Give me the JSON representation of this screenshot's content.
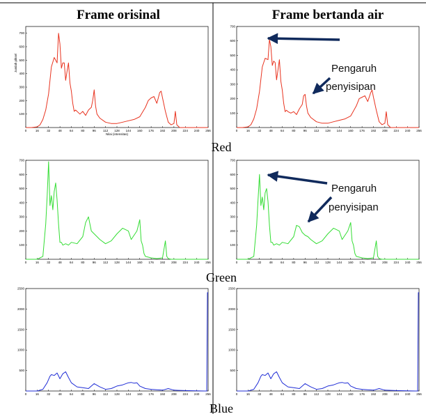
{
  "headers": {
    "left": "Frame orisinal",
    "right": "Frame bertanda air"
  },
  "rows": {
    "red": "Red",
    "green": "Green",
    "blue": "Blue"
  },
  "annotation": {
    "line1": "Pengaruh",
    "line2": "penyisipan"
  },
  "colors": {
    "red": "#e8321e",
    "green": "#33dd33",
    "blue": "#1f2dd6",
    "arrow": "#102a5c"
  },
  "chart_data": [
    {
      "id": "red-original",
      "type": "line",
      "channel": "Red",
      "xlabel": "Nilai (intensitas)",
      "ylabel": "Jumlah piksel",
      "xlim": [
        0,
        256
      ],
      "ylim": [
        0,
        750
      ],
      "xticks": [
        0,
        16,
        32,
        48,
        64,
        80,
        96,
        112,
        128,
        144,
        160,
        176,
        192,
        208,
        224,
        240,
        256
      ],
      "yticks": [
        100,
        200,
        300,
        400,
        500,
        600,
        700
      ],
      "x": [
        0,
        8,
        16,
        20,
        24,
        28,
        32,
        36,
        40,
        44,
        46,
        48,
        50,
        52,
        54,
        56,
        58,
        60,
        62,
        64,
        66,
        68,
        70,
        72,
        76,
        80,
        84,
        88,
        92,
        94,
        96,
        98,
        100,
        104,
        112,
        120,
        128,
        136,
        144,
        152,
        160,
        168,
        172,
        176,
        180,
        184,
        186,
        188,
        190,
        192,
        196,
        200,
        204,
        208,
        210,
        212,
        216,
        224,
        232,
        240,
        248,
        256
      ],
      "y": [
        0,
        0,
        5,
        20,
        60,
        130,
        250,
        450,
        520,
        480,
        700,
        620,
        440,
        480,
        480,
        350,
        420,
        480,
        330,
        270,
        180,
        120,
        130,
        120,
        100,
        120,
        90,
        130,
        150,
        200,
        280,
        160,
        100,
        70,
        40,
        30,
        30,
        40,
        50,
        60,
        80,
        150,
        200,
        220,
        230,
        180,
        220,
        260,
        270,
        220,
        120,
        40,
        20,
        30,
        120,
        20,
        0,
        0,
        0,
        0,
        0,
        0
      ]
    },
    {
      "id": "red-watermarked",
      "type": "line",
      "channel": "Red",
      "xlim": [
        0,
        256
      ],
      "ylim": [
        0,
        700
      ],
      "xticks": [
        0,
        16,
        32,
        48,
        64,
        80,
        96,
        112,
        128,
        144,
        160,
        176,
        192,
        208,
        224,
        240,
        256
      ],
      "yticks": [
        100,
        200,
        300,
        400,
        500,
        600,
        700
      ],
      "x": [
        0,
        8,
        16,
        20,
        24,
        28,
        32,
        36,
        40,
        44,
        46,
        48,
        50,
        52,
        54,
        56,
        58,
        60,
        62,
        64,
        66,
        68,
        70,
        72,
        76,
        80,
        84,
        88,
        92,
        94,
        96,
        98,
        100,
        104,
        112,
        120,
        128,
        136,
        144,
        152,
        160,
        168,
        172,
        176,
        180,
        184,
        186,
        188,
        190,
        192,
        196,
        200,
        204,
        208,
        210,
        212,
        216,
        224,
        232,
        240,
        248,
        256
      ],
      "y": [
        0,
        0,
        5,
        20,
        60,
        130,
        250,
        420,
        480,
        470,
        610,
        560,
        430,
        460,
        450,
        330,
        400,
        470,
        320,
        260,
        170,
        110,
        120,
        110,
        100,
        110,
        90,
        130,
        160,
        220,
        230,
        150,
        100,
        70,
        40,
        30,
        30,
        40,
        50,
        60,
        80,
        150,
        200,
        210,
        220,
        180,
        210,
        240,
        260,
        210,
        120,
        40,
        20,
        30,
        110,
        20,
        0,
        0,
        0,
        0,
        0,
        0
      ]
    },
    {
      "id": "green-original",
      "type": "line",
      "channel": "Green",
      "xlim": [
        0,
        256
      ],
      "ylim": [
        0,
        700
      ],
      "xticks": [
        0,
        16,
        32,
        48,
        64,
        80,
        96,
        112,
        128,
        144,
        160,
        176,
        192,
        208,
        224,
        240,
        256
      ],
      "yticks": [
        100,
        200,
        300,
        400,
        500,
        600,
        700
      ],
      "x": [
        0,
        16,
        24,
        28,
        30,
        32,
        34,
        36,
        38,
        40,
        42,
        44,
        46,
        48,
        50,
        52,
        56,
        60,
        64,
        72,
        80,
        84,
        88,
        92,
        96,
        100,
        104,
        112,
        120,
        128,
        136,
        144,
        148,
        152,
        156,
        160,
        162,
        164,
        166,
        168,
        176,
        184,
        192,
        196,
        198,
        200,
        204,
        208,
        224,
        240,
        256
      ],
      "y": [
        0,
        0,
        20,
        250,
        440,
        690,
        380,
        450,
        350,
        480,
        540,
        420,
        250,
        120,
        120,
        100,
        110,
        100,
        120,
        110,
        160,
        260,
        300,
        200,
        180,
        160,
        140,
        110,
        130,
        180,
        220,
        200,
        140,
        170,
        200,
        280,
        130,
        100,
        40,
        20,
        10,
        5,
        10,
        130,
        20,
        5,
        0,
        0,
        0,
        0,
        0
      ]
    },
    {
      "id": "green-watermarked",
      "type": "line",
      "channel": "Green",
      "xlim": [
        0,
        256
      ],
      "ylim": [
        0,
        700
      ],
      "xticks": [
        0,
        16,
        32,
        48,
        64,
        80,
        96,
        112,
        128,
        144,
        160,
        176,
        192,
        208,
        224,
        240,
        256
      ],
      "yticks": [
        100,
        200,
        300,
        400,
        500,
        600,
        700
      ],
      "x": [
        0,
        16,
        24,
        28,
        30,
        32,
        34,
        36,
        38,
        40,
        42,
        44,
        46,
        48,
        50,
        52,
        56,
        60,
        64,
        72,
        80,
        84,
        88,
        92,
        96,
        100,
        104,
        112,
        120,
        128,
        136,
        144,
        148,
        152,
        156,
        160,
        162,
        164,
        166,
        168,
        176,
        184,
        192,
        196,
        198,
        200,
        204,
        208,
        224,
        240,
        256
      ],
      "y": [
        0,
        0,
        20,
        240,
        420,
        600,
        380,
        440,
        350,
        470,
        500,
        410,
        240,
        120,
        120,
        100,
        110,
        100,
        120,
        110,
        160,
        240,
        230,
        190,
        170,
        160,
        140,
        110,
        130,
        180,
        220,
        200,
        140,
        170,
        200,
        260,
        130,
        100,
        40,
        20,
        10,
        5,
        10,
        130,
        20,
        5,
        0,
        0,
        0,
        0,
        0
      ]
    },
    {
      "id": "blue-original",
      "type": "line",
      "channel": "Blue",
      "xlim": [
        0,
        256
      ],
      "ylim": [
        0,
        2500
      ],
      "xticks": [
        0,
        16,
        32,
        48,
        64,
        80,
        96,
        112,
        128,
        144,
        160,
        176,
        192,
        208,
        224,
        240,
        256
      ],
      "yticks": [
        500,
        1000,
        1500,
        2000,
        2500
      ],
      "x": [
        0,
        16,
        24,
        30,
        34,
        36,
        40,
        44,
        48,
        52,
        56,
        60,
        64,
        72,
        80,
        88,
        96,
        104,
        112,
        120,
        128,
        136,
        144,
        148,
        152,
        156,
        160,
        168,
        176,
        184,
        192,
        200,
        208,
        224,
        240,
        252,
        254,
        255,
        256
      ],
      "y": [
        0,
        0,
        40,
        200,
        360,
        400,
        380,
        440,
        300,
        420,
        470,
        330,
        200,
        100,
        80,
        60,
        180,
        100,
        40,
        60,
        120,
        150,
        200,
        210,
        190,
        200,
        120,
        60,
        40,
        30,
        20,
        60,
        20,
        10,
        5,
        0,
        0,
        2400,
        2400
      ]
    },
    {
      "id": "blue-watermarked",
      "type": "line",
      "channel": "Blue",
      "xlim": [
        0,
        256
      ],
      "ylim": [
        0,
        2500
      ],
      "xticks": [
        0,
        16,
        32,
        48,
        64,
        80,
        96,
        112,
        128,
        144,
        160,
        176,
        192,
        208,
        224,
        240,
        256
      ],
      "yticks": [
        500,
        1000,
        1500,
        2000,
        2500
      ],
      "x": [
        0,
        16,
        24,
        30,
        34,
        36,
        40,
        44,
        48,
        52,
        56,
        60,
        64,
        72,
        80,
        88,
        96,
        104,
        112,
        120,
        128,
        136,
        144,
        148,
        152,
        156,
        160,
        168,
        176,
        184,
        192,
        200,
        208,
        224,
        240,
        252,
        254,
        255,
        256
      ],
      "y": [
        0,
        0,
        40,
        200,
        360,
        400,
        380,
        440,
        300,
        420,
        470,
        330,
        200,
        100,
        80,
        60,
        180,
        100,
        40,
        60,
        120,
        150,
        200,
        210,
        190,
        200,
        120,
        60,
        40,
        30,
        20,
        60,
        20,
        10,
        5,
        0,
        0,
        2400,
        2400
      ]
    }
  ]
}
